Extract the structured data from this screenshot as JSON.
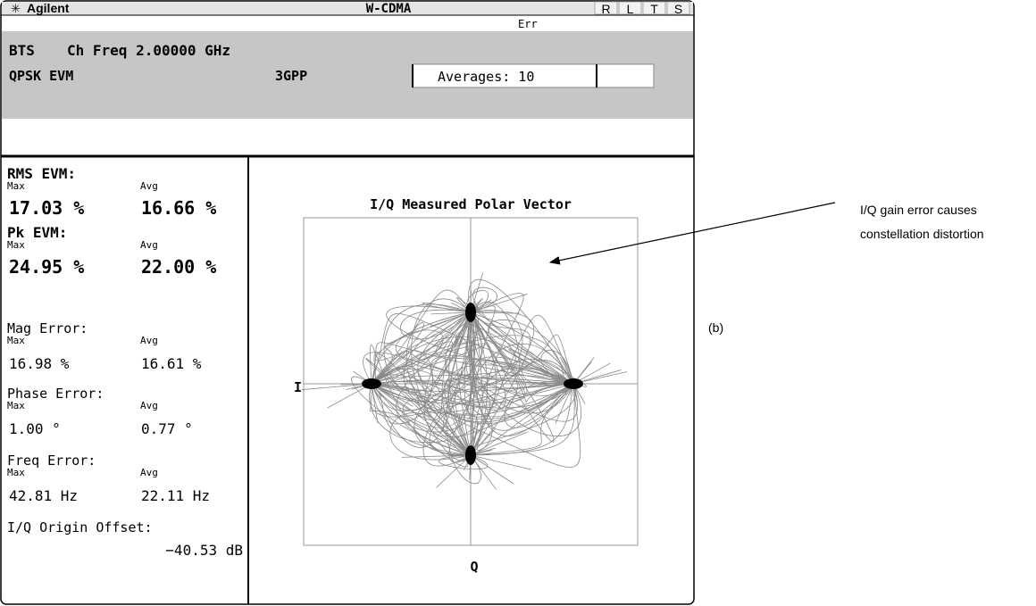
{
  "header": {
    "brand": "Agilent",
    "mode": "W-CDMA",
    "indicators": [
      "R",
      "L",
      "T",
      "S"
    ]
  },
  "status": "Err",
  "info": {
    "standard": "BTS",
    "frequency": "Ch Freq 2.00000 GHz",
    "measurement": "QPSK EVM",
    "spec": "3GPP",
    "averages": "Averages: 10"
  },
  "metrics": [
    {
      "label": "RMS EVM:",
      "max_label": "Max",
      "avg_label": "Avg",
      "max": "17.03 %",
      "avg": "16.66 %"
    },
    {
      "label": "Pk EVM:",
      "max_label": "Max",
      "avg_label": "Avg",
      "max": "24.95 %",
      "avg": "22.00 %"
    },
    {
      "label": "Mag Error:",
      "max_label": "Max",
      "avg_label": "Avg",
      "max": "16.98 %",
      "avg": "16.61 %"
    },
    {
      "label": "Phase Error:",
      "max_label": "Max",
      "avg_label": "Avg",
      "max": "1.00 °",
      "avg": "0.77 °"
    },
    {
      "label": "Freq Error:",
      "max_label": "Max",
      "avg_label": "Avg",
      "max": "42.81 Hz",
      "avg": "22.11 Hz"
    }
  ],
  "origin_offset": {
    "label": "I/Q Origin Offset:",
    "value": "−40.53 dB"
  },
  "plot": {
    "title": "I/Q Measured Polar Vector",
    "i_label": "I",
    "q_label": "Q"
  },
  "annotation": {
    "lines": [
      "I/Q gain error causes",
      "constellation distortion"
    ],
    "tag": "(b)"
  }
}
